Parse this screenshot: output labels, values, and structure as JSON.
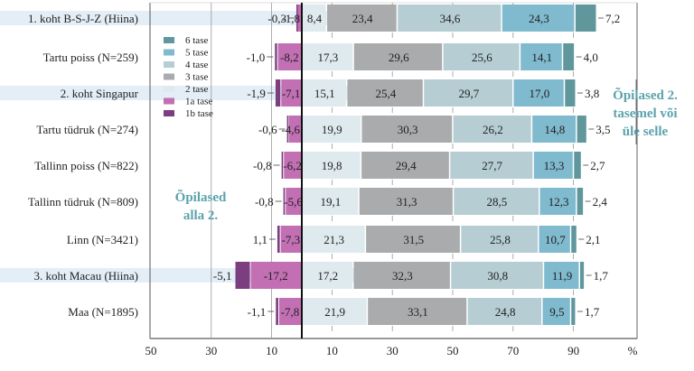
{
  "chart_data": {
    "type": "bar",
    "orientation": "horizontal",
    "stacked": "diverging",
    "title": "",
    "xlabel": "%",
    "ylabel": "",
    "xlim": [
      -50,
      100
    ],
    "x_tick_values": [
      -50,
      -30,
      -10,
      10,
      30,
      50,
      70,
      90
    ],
    "x_tick_labels": [
      "50",
      "30",
      "10",
      "10",
      "30",
      "50",
      "70",
      "90"
    ],
    "x_unit_label": "%",
    "grid": "vertical ticks only",
    "legend_position": "top-left (inside plot)",
    "categories": [
      "1. koht B-S-J-Z (Hiina)",
      "Tartu poiss (N=259)",
      "2. koht Singapur",
      "Tartu tüdruk (N=274)",
      "Tallinn poiss (N=822)",
      "Tallinn tüdruk (N=809)",
      "Linn (N=3421)",
      "3. koht Macau (Hiina)",
      "Maa (N=1895)"
    ],
    "highlighted_categories": [
      "1. koht B-S-J-Z (Hiina)",
      "2. koht Singapur",
      "3. koht Macau (Hiina)"
    ],
    "series": [
      {
        "name": "1b tase",
        "side": "negative",
        "color": "#7b3f7f",
        "values": [
          0.3,
          1.0,
          1.9,
          0.6,
          0.8,
          0.8,
          1.1,
          5.1,
          1.1
        ],
        "labels": [
          "-0,3",
          "-1,0",
          "-1,9",
          "-0,6",
          "-0,8",
          "-0,8",
          "1,1",
          "-5,1",
          "-1,1"
        ]
      },
      {
        "name": "1a tase",
        "side": "negative",
        "color": "#c26fb3",
        "values": [
          1.8,
          8.2,
          7.1,
          4.6,
          6.2,
          5.6,
          7.3,
          17.2,
          7.8
        ],
        "labels": [
          "-1,8",
          "-8,2",
          "-7,1",
          "-4,6",
          "-6,2",
          "-5,6",
          "-7,3",
          "-17,2",
          "-7,8"
        ]
      },
      {
        "name": "2 tase",
        "side": "positive",
        "color": "#dfeaee",
        "values": [
          8.4,
          17.3,
          15.1,
          19.9,
          19.8,
          19.1,
          21.3,
          17.2,
          21.9
        ],
        "labels": [
          "8,4",
          "17,3",
          "15,1",
          "19,9",
          "19,8",
          "19,1",
          "21,3",
          "17,2",
          "21,9"
        ]
      },
      {
        "name": "3 tase",
        "side": "positive",
        "color": "#a9abad",
        "values": [
          23.4,
          29.6,
          25.4,
          30.3,
          29.4,
          31.3,
          31.5,
          32.3,
          33.1
        ],
        "labels": [
          "23,4",
          "29,6",
          "25,4",
          "30,3",
          "29,4",
          "31,3",
          "31,5",
          "32,3",
          "33,1"
        ]
      },
      {
        "name": "4 tase",
        "side": "positive",
        "color": "#b5cdd3",
        "values": [
          34.6,
          25.6,
          29.7,
          26.2,
          27.7,
          28.5,
          25.8,
          30.8,
          24.8
        ],
        "labels": [
          "34,6",
          "25,6",
          "29,7",
          "26,2",
          "27,7",
          "28,5",
          "25,8",
          "30,8",
          "24,8"
        ]
      },
      {
        "name": "5 tase",
        "side": "positive",
        "color": "#7fbace",
        "values": [
          24.3,
          14.1,
          17.0,
          14.8,
          13.3,
          12.3,
          10.7,
          11.9,
          9.5
        ],
        "labels": [
          "24,3",
          "14,1",
          "17,0",
          "14,8",
          "13,3",
          "12,3",
          "10,7",
          "11,9",
          "9,5"
        ]
      },
      {
        "name": "6 tase",
        "side": "positive",
        "color": "#5f979d",
        "values": [
          7.2,
          4.0,
          3.8,
          3.5,
          2.7,
          2.4,
          2.1,
          1.7,
          1.7
        ],
        "labels": [
          "7,2",
          "4,0",
          "3,8",
          "3,5",
          "2,7",
          "2,4",
          "2,1",
          "1,7",
          "1,7"
        ]
      }
    ],
    "legend": [
      "6 tase",
      "5 tase",
      "4 tase",
      "3 tase",
      "2 tase",
      "1a tase",
      "1b tase"
    ],
    "annotations": {
      "below": [
        "Õpilased",
        "alla 2."
      ],
      "above": [
        "Õpilased 2.",
        "tasemel või",
        "üle selle"
      ]
    },
    "colors": {
      "highlight_band": "#e3eef6",
      "annotation_text": "#5ba2ac",
      "axis": "#222222",
      "frame": "#888888"
    }
  }
}
